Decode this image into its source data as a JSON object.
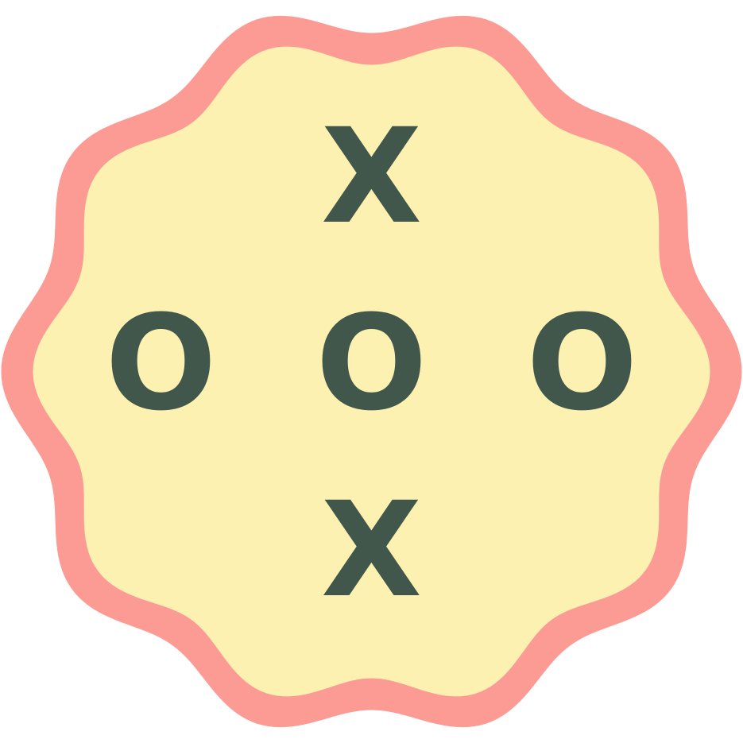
{
  "colors": {
    "badge_border": "#fc9a94",
    "badge_fill": "#fcf1b1",
    "mark": "#41574b",
    "background": "#ffffff"
  },
  "board": {
    "cells": [
      {
        "label": ""
      },
      {
        "label": "X"
      },
      {
        "label": ""
      },
      {
        "label": "O"
      },
      {
        "label": "O"
      },
      {
        "label": "O"
      },
      {
        "label": ""
      },
      {
        "label": "X"
      },
      {
        "label": ""
      }
    ]
  }
}
